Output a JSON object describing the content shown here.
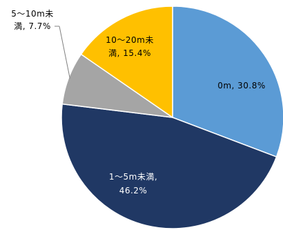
{
  "chart_data": {
    "type": "pie",
    "slices": [
      {
        "label": "0m",
        "value": 30.8,
        "display": "0m, 30.8%",
        "color": "#5b9bd5",
        "text_color": "#000000"
      },
      {
        "label": "1～5m未満",
        "value": 46.2,
        "display_line1": "1～5m未満,",
        "display_line2": "46.2%",
        "color": "#203864",
        "text_color": "#ffffff"
      },
      {
        "label": "5～10m未満",
        "value": 7.7,
        "display_line1": "5～10m未",
        "display_line2": "満, 7.7%",
        "color": "#a5a5a5",
        "text_color": "#000000"
      },
      {
        "label": "10～20m未満",
        "value": 15.4,
        "display_line1": "10～20m未",
        "display_line2": "満, 15.4%",
        "color": "#ffc000",
        "text_color": "#000000"
      }
    ],
    "start_angle_deg": 0,
    "direction": "clockwise",
    "legend": "none"
  }
}
